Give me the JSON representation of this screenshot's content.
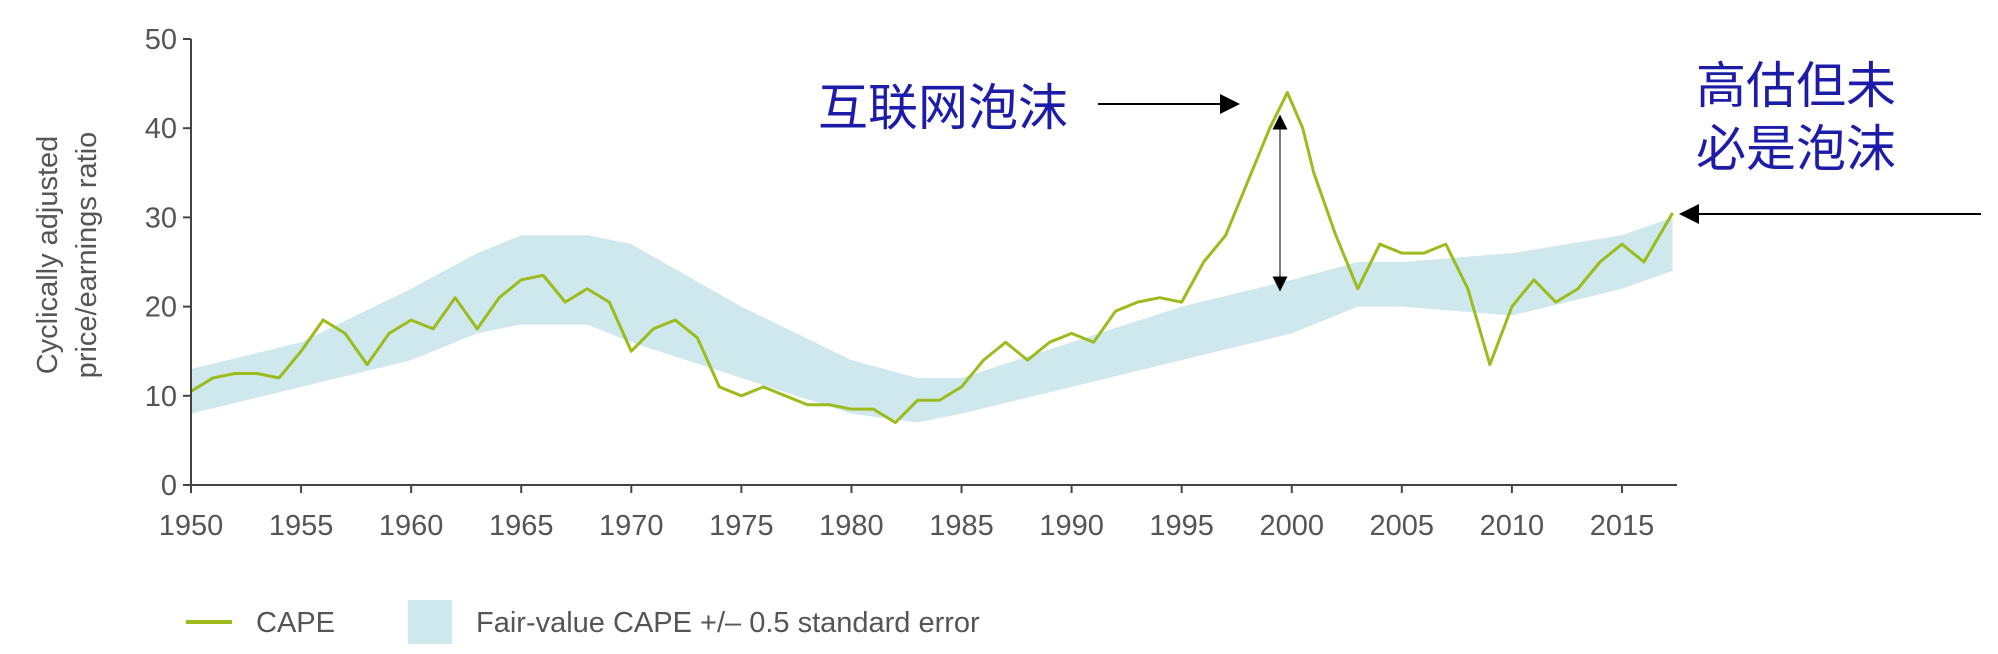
{
  "chart_data": {
    "type": "line",
    "y_label": [
      "Cyclically adjusted",
      "price/earnings ratio"
    ],
    "xlim": [
      1950,
      2017.5
    ],
    "xticks": [
      1950,
      1955,
      1960,
      1965,
      1970,
      1975,
      1980,
      1985,
      1990,
      1995,
      2000,
      2005,
      2010,
      2015
    ],
    "ylim": [
      0,
      50
    ],
    "yticks": [
      0,
      10,
      20,
      30,
      40,
      50
    ],
    "series": [
      {
        "name": "CAPE",
        "color": "#9cbb1c",
        "x": [
          1950,
          1951,
          1952,
          1953,
          1954,
          1955,
          1956,
          1957,
          1958,
          1959,
          1960,
          1961,
          1962,
          1963,
          1964,
          1965,
          1966,
          1967,
          1968,
          1969,
          1970,
          1971,
          1972,
          1973,
          1974,
          1975,
          1976,
          1977,
          1978,
          1979,
          1980,
          1981,
          1982,
          1983,
          1984,
          1985,
          1986,
          1987,
          1988,
          1989,
          1990,
          1991,
          1992,
          1993,
          1994,
          1995,
          1996,
          1997,
          1998,
          1999,
          1999.8,
          2000.5,
          2001,
          2002,
          2003,
          2004,
          2005,
          2006,
          2007,
          2008,
          2009,
          2010,
          2011,
          2012,
          2013,
          2014,
          2015,
          2016,
          2017.3
        ],
        "values": [
          10.5,
          12,
          12.5,
          12.5,
          12,
          15,
          18.5,
          17,
          13.5,
          17,
          18.5,
          17.5,
          21,
          17.5,
          21,
          23,
          23.5,
          20.5,
          22,
          20.5,
          15,
          17.5,
          18.5,
          16.5,
          11,
          10,
          11,
          10,
          9,
          9,
          8.5,
          8.5,
          7,
          9.5,
          9.5,
          11,
          14,
          16,
          14,
          16,
          17,
          16,
          19.5,
          20.5,
          21,
          20.5,
          25,
          28,
          34,
          40,
          44,
          40,
          35,
          28,
          22,
          27,
          26,
          26,
          27,
          22,
          13.5,
          20,
          23,
          20.5,
          22,
          25,
          27,
          25,
          30.5
        ]
      }
    ],
    "band": {
      "name": "Fair-value CAPE +/– 0.5 standard error",
      "color": "#cfe8ee",
      "x": [
        1950,
        1955,
        1960,
        1963,
        1965,
        1968,
        1970,
        1975,
        1980,
        1983,
        1985,
        1990,
        1995,
        2000,
        2003,
        2005,
        2010,
        2015,
        2017.3
      ],
      "lower": [
        8,
        11,
        14,
        17,
        18,
        18,
        16,
        12,
        8,
        7,
        8,
        11,
        14,
        17,
        20,
        20,
        19,
        22,
        24
      ],
      "upper": [
        13,
        16,
        22,
        26,
        28,
        28,
        27,
        20,
        14,
        12,
        12,
        16,
        20,
        23,
        25,
        25,
        26,
        28,
        30
      ]
    },
    "annotations": {
      "bubble": "互联网泡沫",
      "current": [
        "高估但未",
        "必是泡沫"
      ]
    }
  }
}
